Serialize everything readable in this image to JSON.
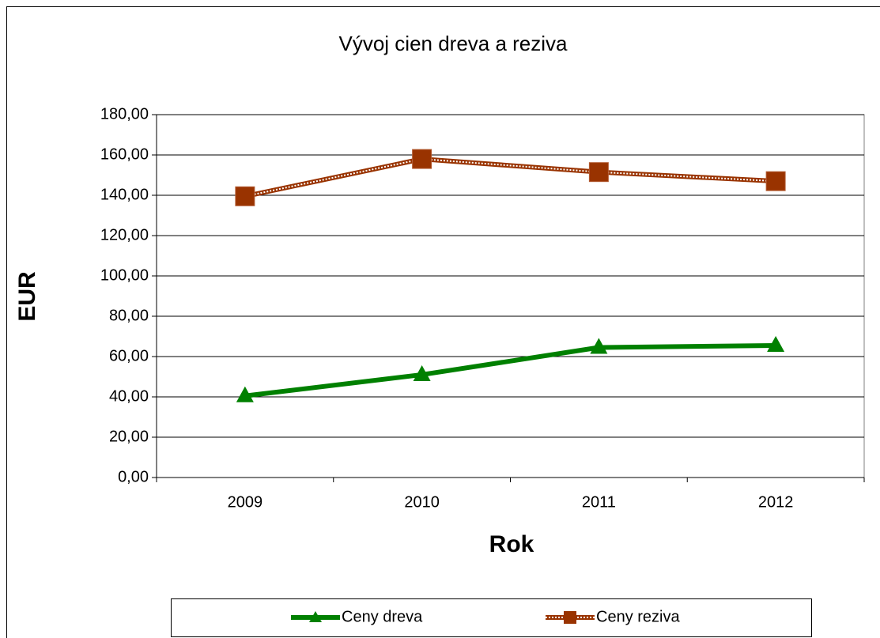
{
  "chart_data": {
    "type": "line",
    "title": "Vývoj cien dreva a reziva",
    "x_label": "Rok",
    "y_label": "EUR",
    "categories": [
      "2009",
      "2010",
      "2011",
      "2012"
    ],
    "series": [
      {
        "name": "Ceny dreva",
        "color": "#008000",
        "marker": "triangle",
        "values": [
          40.5,
          51,
          64.5,
          65.5
        ]
      },
      {
        "name": "Ceny reziva",
        "color": "#993300",
        "marker": "square",
        "values": [
          139.5,
          158,
          151.5,
          147
        ]
      }
    ],
    "ylim": [
      0,
      180
    ],
    "yticks": [
      {
        "value": 0,
        "label": "0,00"
      },
      {
        "value": 20,
        "label": "20,00"
      },
      {
        "value": 40,
        "label": "40,00"
      },
      {
        "value": 60,
        "label": "60,00"
      },
      {
        "value": 80,
        "label": "80,00"
      },
      {
        "value": 100,
        "label": "100,00"
      },
      {
        "value": 120,
        "label": "120,00"
      },
      {
        "value": 140,
        "label": "140,00"
      },
      {
        "value": 160,
        "label": "160,00"
      },
      {
        "value": 180,
        "label": "180,00"
      }
    ],
    "grid": true,
    "legend": "bottom"
  }
}
